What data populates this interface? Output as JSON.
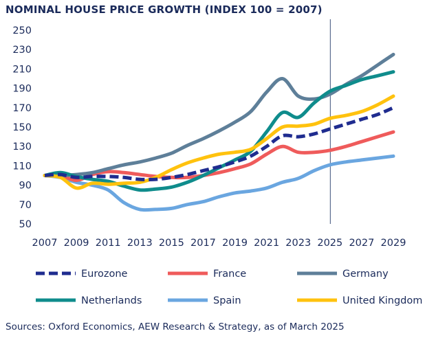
{
  "title": "NOMINAL HOUSE PRICE GROWTH (INDEX 100 = 2007)",
  "source": "Sources: Oxford Economics, AEW Research & Strategy, as of March 2025",
  "chart_data": {
    "type": "line",
    "title": "NOMINAL HOUSE PRICE GROWTH (INDEX 100 = 2007)",
    "xlabel": "",
    "ylabel": "",
    "xlim": [
      2007,
      2029
    ],
    "ylim": [
      50,
      250
    ],
    "y_ticks": [
      50,
      70,
      90,
      110,
      130,
      150,
      170,
      190,
      210,
      230,
      250
    ],
    "x_ticks": [
      2007,
      2009,
      2011,
      2013,
      2015,
      2017,
      2019,
      2021,
      2023,
      2025,
      2027,
      2029
    ],
    "grid": false,
    "forecast_divider_x": 2025,
    "legend_position": "bottom",
    "x": [
      2007,
      2008,
      2009,
      2010,
      2011,
      2012,
      2013,
      2014,
      2015,
      2016,
      2017,
      2018,
      2019,
      2020,
      2021,
      2022,
      2023,
      2024,
      2025,
      2026,
      2027,
      2028,
      2029
    ],
    "series": [
      {
        "name": "Eurozone",
        "color": "#1f2c8f",
        "dash": true,
        "values": [
          100,
          101,
          98,
          99,
          99,
          98,
          96,
          96,
          98,
          101,
          105,
          109,
          114,
          120,
          130,
          141,
          140,
          143,
          148,
          153,
          158,
          163,
          170
        ]
      },
      {
        "name": "France",
        "color": "#ef5b5b",
        "dash": false,
        "values": [
          100,
          100,
          95,
          101,
          104,
          103,
          101,
          99,
          98,
          98,
          100,
          103,
          107,
          112,
          122,
          130,
          124,
          124,
          126,
          130,
          135,
          140,
          145
        ]
      },
      {
        "name": "Germany",
        "color": "#5e7f99",
        "dash": false,
        "values": [
          100,
          100,
          101,
          103,
          107,
          111,
          114,
          118,
          123,
          131,
          138,
          146,
          155,
          166,
          186,
          200,
          182,
          179,
          184,
          194,
          203,
          214,
          225
        ]
      },
      {
        "name": "Netherlands",
        "color": "#0f8c8c",
        "dash": false,
        "values": [
          100,
          103,
          99,
          96,
          94,
          89,
          85,
          86,
          88,
          93,
          100,
          108,
          116,
          125,
          145,
          165,
          160,
          175,
          187,
          193,
          199,
          203,
          207
        ]
      },
      {
        "name": "Spain",
        "color": "#6aa6e0",
        "dash": false,
        "values": [
          100,
          98,
          93,
          90,
          85,
          72,
          65,
          65,
          66,
          70,
          73,
          78,
          82,
          84,
          87,
          93,
          97,
          105,
          111,
          114,
          116,
          118,
          120
        ]
      },
      {
        "name": "United Kingdom",
        "color": "#ffc20e",
        "dash": false,
        "values": [
          100,
          98,
          87,
          92,
          91,
          92,
          93,
          98,
          106,
          113,
          118,
          122,
          124,
          127,
          138,
          150,
          151,
          153,
          159,
          162,
          166,
          173,
          182
        ]
      }
    ]
  }
}
